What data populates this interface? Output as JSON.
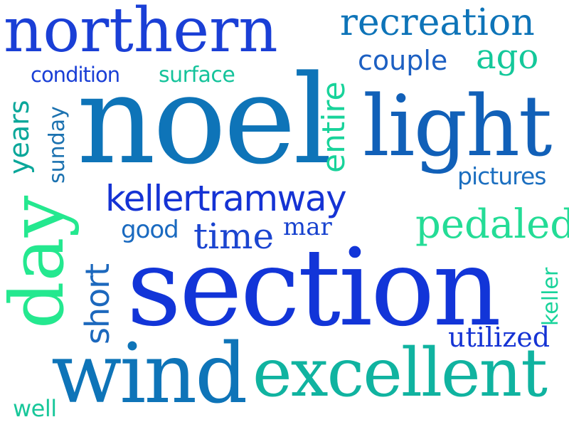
{
  "word_cloud": {
    "words": [
      {
        "text": "northern",
        "color": "#1a3fd6"
      },
      {
        "text": "recreation",
        "color": "#0e74b8"
      },
      {
        "text": "couple",
        "color": "#1c5fc2"
      },
      {
        "text": "ago",
        "color": "#14c89a"
      },
      {
        "text": "condition",
        "color": "#1a3fd6"
      },
      {
        "text": "surface",
        "color": "#15c39b"
      },
      {
        "text": "years",
        "color": "#0aa79a"
      },
      {
        "text": "sunday",
        "color": "#1c72b0"
      },
      {
        "text": "noel",
        "color": "#0e74b8"
      },
      {
        "text": "entire",
        "color": "#18d39a"
      },
      {
        "text": "light",
        "color": "#1160b8"
      },
      {
        "text": "pictures",
        "color": "#1c6fc0"
      },
      {
        "text": "day",
        "color": "#24e88f"
      },
      {
        "text": "kellertramway",
        "color": "#1533d4"
      },
      {
        "text": "good",
        "color": "#1a6ac0"
      },
      {
        "text": "time",
        "color": "#1b45d0"
      },
      {
        "text": "mar",
        "color": "#1742cf"
      },
      {
        "text": "pedaled",
        "color": "#24dc96"
      },
      {
        "text": "short",
        "color": "#1c68bd"
      },
      {
        "text": "section",
        "color": "#1235d8"
      },
      {
        "text": "keller",
        "color": "#18d39a"
      },
      {
        "text": "utilized",
        "color": "#1533d4"
      },
      {
        "text": "wind",
        "color": "#0e74b8"
      },
      {
        "text": "excellent",
        "color": "#10b3a0"
      },
      {
        "text": "well",
        "color": "#18c79a"
      }
    ]
  }
}
